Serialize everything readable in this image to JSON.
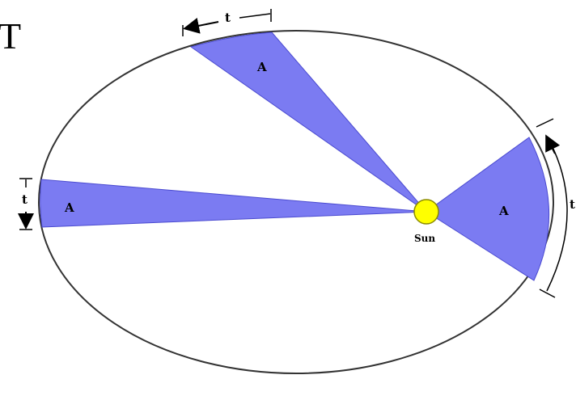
{
  "corner_glyph": "T",
  "sun_label": "Sun",
  "area_label": "A",
  "time_label": "t",
  "colors": {
    "sector_fill": "#7b7bf2",
    "sector_stroke": "#4a4ad0",
    "sun_fill": "#ffff00",
    "sun_stroke": "#8a8a00",
    "orbit_stroke": "#333333"
  }
}
